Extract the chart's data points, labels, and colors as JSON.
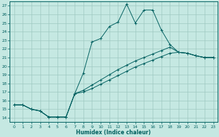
{
  "xlabel": "Humidex (Indice chaleur)",
  "xlim": [
    -0.5,
    23.5
  ],
  "ylim": [
    13.5,
    27.5
  ],
  "xticks": [
    0,
    1,
    2,
    3,
    4,
    5,
    6,
    7,
    8,
    9,
    10,
    11,
    12,
    13,
    14,
    15,
    16,
    17,
    18,
    19,
    20,
    21,
    22,
    23
  ],
  "yticks": [
    14,
    15,
    16,
    17,
    18,
    19,
    20,
    21,
    22,
    23,
    24,
    25,
    26,
    27
  ],
  "background_color": "#c5e8e2",
  "grid_color": "#9dc8c0",
  "line_color": "#005f5f",
  "curves": [
    {
      "x": [
        0,
        1,
        2,
        3,
        4,
        5,
        6,
        7,
        8,
        9,
        10,
        11,
        12,
        13,
        14,
        15,
        16,
        17,
        18,
        19,
        20,
        21,
        22,
        23
      ],
      "y": [
        15.5,
        15.5,
        15.0,
        14.8,
        14.1,
        14.1,
        14.1,
        16.8,
        19.2,
        22.8,
        23.2,
        24.6,
        25.1,
        27.2,
        25.0,
        26.5,
        26.5,
        24.2,
        22.5,
        21.6,
        21.5,
        21.2,
        21.0,
        21.0
      ]
    },
    {
      "x": [
        0,
        1,
        2,
        3,
        4,
        5,
        6,
        7,
        8,
        9,
        10,
        11,
        12,
        13,
        14,
        15,
        16,
        17,
        18,
        19,
        20,
        21,
        22,
        23
      ],
      "y": [
        15.5,
        15.5,
        15.0,
        14.8,
        14.1,
        14.1,
        14.1,
        16.8,
        17.2,
        17.8,
        18.4,
        19.0,
        19.6,
        20.1,
        20.6,
        21.0,
        21.4,
        21.8,
        22.2,
        21.6,
        21.5,
        21.2,
        21.0,
        21.0
      ]
    },
    {
      "x": [
        0,
        1,
        2,
        3,
        4,
        5,
        6,
        7,
        8,
        9,
        10,
        11,
        12,
        13,
        14,
        15,
        16,
        17,
        18,
        19,
        20,
        21,
        22,
        23
      ],
      "y": [
        15.5,
        15.5,
        15.0,
        14.8,
        14.1,
        14.1,
        14.1,
        16.8,
        17.0,
        17.4,
        17.9,
        18.4,
        18.9,
        19.4,
        19.9,
        20.3,
        20.7,
        21.1,
        21.5,
        21.6,
        21.5,
        21.2,
        21.0,
        21.0
      ]
    }
  ]
}
